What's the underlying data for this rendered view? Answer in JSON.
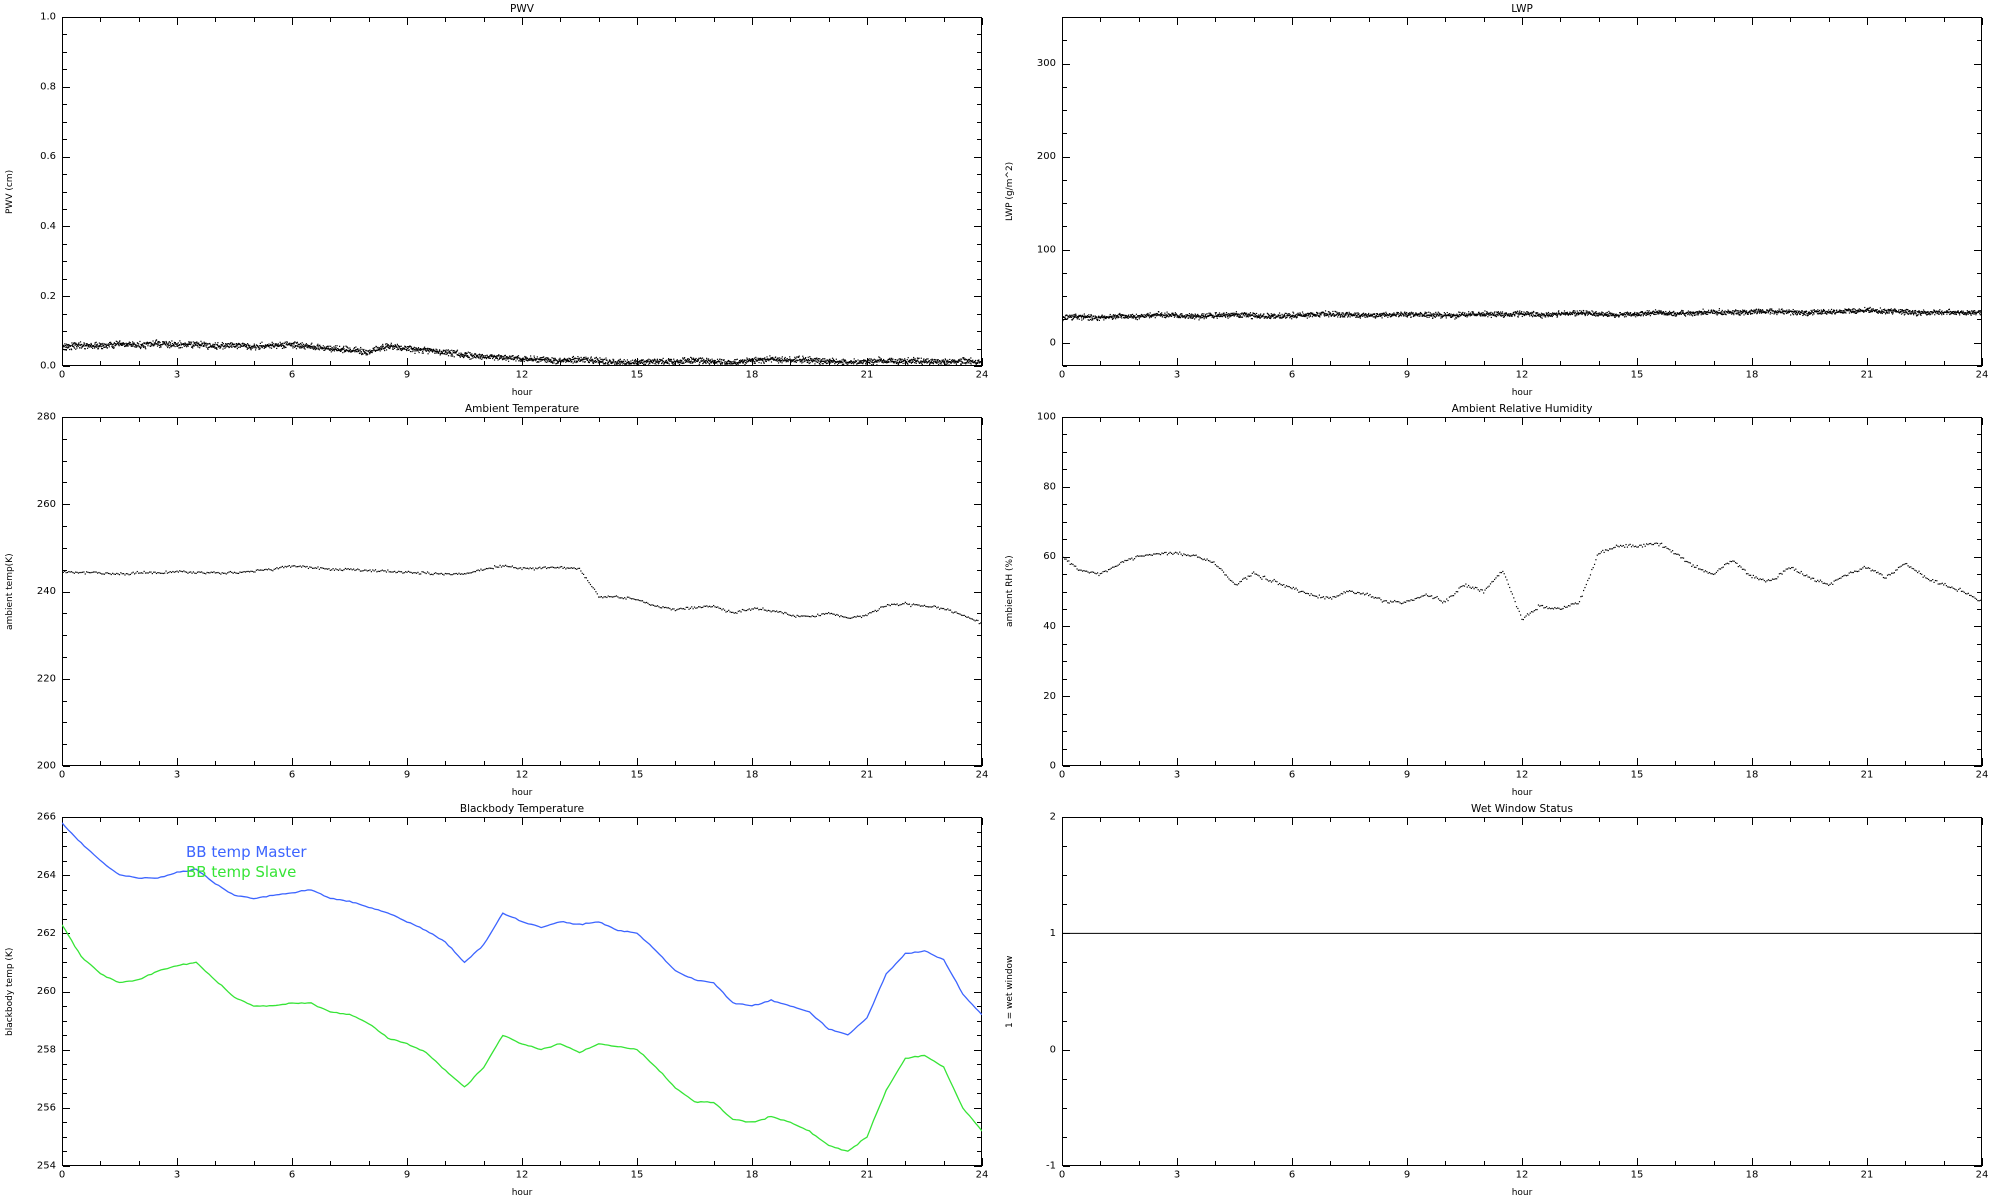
{
  "page": {
    "background": "#ffffff",
    "axis_color": "#000000"
  },
  "chart_data": [
    {
      "id": "pwv",
      "type": "line",
      "title": "PWV",
      "xlabel": "hour",
      "ylabel": "PWV (cm)",
      "xlim": [
        0,
        24
      ],
      "ylim": [
        0,
        1.0
      ],
      "xticks": [
        0,
        3,
        6,
        9,
        12,
        15,
        18,
        21,
        24
      ],
      "yticks": [
        0.0,
        0.2,
        0.4,
        0.6,
        0.8,
        1.0
      ],
      "xdecimals": 0,
      "ydecimals": 1,
      "xminor": 3,
      "yminor": 4,
      "grid": false,
      "series": [
        {
          "color": "#000000",
          "style": "dots",
          "noise": 0.009,
          "upsample": 60,
          "x0": 0,
          "dx": 0.5,
          "y": [
            0.055,
            0.06,
            0.057,
            0.062,
            0.059,
            0.064,
            0.06,
            0.062,
            0.057,
            0.06,
            0.056,
            0.058,
            0.061,
            0.055,
            0.05,
            0.045,
            0.04,
            0.057,
            0.05,
            0.046,
            0.038,
            0.032,
            0.027,
            0.025,
            0.021,
            0.017,
            0.015,
            0.019,
            0.015,
            0.011,
            0.01,
            0.012,
            0.013,
            0.016,
            0.012,
            0.01,
            0.015,
            0.02,
            0.016,
            0.018,
            0.013,
            0.01,
            0.012,
            0.015,
            0.012,
            0.015,
            0.011,
            0.014,
            0.012
          ]
        }
      ]
    },
    {
      "id": "lwp",
      "type": "line",
      "title": "LWP",
      "xlabel": "hour",
      "ylabel": "LWP (g/m^2)",
      "xlim": [
        0,
        24
      ],
      "ylim": [
        -25,
        350
      ],
      "xticks": [
        0,
        3,
        6,
        9,
        12,
        15,
        18,
        21,
        24
      ],
      "yticks": [
        0,
        100,
        200,
        300
      ],
      "xdecimals": 0,
      "ydecimals": 0,
      "xminor": 3,
      "yminor": 4,
      "grid": false,
      "series": [
        {
          "color": "#000000",
          "style": "dots",
          "noise": 2.8,
          "upsample": 60,
          "x0": 0,
          "dx": 0.5,
          "y": [
            27,
            28,
            27,
            29,
            28,
            30,
            29,
            28,
            29,
            30,
            29,
            28,
            29,
            30,
            31,
            30,
            29,
            30,
            31,
            30,
            29,
            30,
            31,
            30,
            31,
            30,
            31,
            32,
            31,
            30,
            31,
            32,
            31,
            32,
            33,
            32,
            33,
            34,
            33,
            32,
            33,
            34,
            35,
            34,
            33,
            32,
            33,
            32,
            33
          ]
        }
      ]
    },
    {
      "id": "ambient-temperature",
      "type": "line",
      "title": "Ambient Temperature",
      "xlabel": "hour",
      "ylabel": "ambient temp(K)",
      "xlim": [
        0,
        24
      ],
      "ylim": [
        200,
        280
      ],
      "xticks": [
        0,
        3,
        6,
        9,
        12,
        15,
        18,
        21,
        24
      ],
      "yticks": [
        200,
        220,
        240,
        260,
        280
      ],
      "xdecimals": 0,
      "ydecimals": 0,
      "xminor": 3,
      "yminor": 4,
      "grid": false,
      "series": [
        {
          "color": "#000000",
          "style": "dots",
          "noise": 0.3,
          "upsample": 14,
          "x0": 0,
          "dx": 0.5,
          "y": [
            244.5,
            244.3,
            244.2,
            244.0,
            244.2,
            244.3,
            244.5,
            244.3,
            244.2,
            244.4,
            244.6,
            245.1,
            245.9,
            245.5,
            245.1,
            245.0,
            244.8,
            244.6,
            244.5,
            244.2,
            243.9,
            244.1,
            245.1,
            245.9,
            245.3,
            245.4,
            245.5,
            245.3,
            238.9,
            238.6,
            238.2,
            236.6,
            235.9,
            236.3,
            236.6,
            235.1,
            236.1,
            235.6,
            234.6,
            234.1,
            235.1,
            233.9,
            234.6,
            236.9,
            237.1,
            236.6,
            236.1,
            234.6,
            232.6
          ]
        }
      ]
    },
    {
      "id": "ambient-relative-humidity",
      "type": "line",
      "title": "Ambient Relative Humidity",
      "xlabel": "hour",
      "ylabel": "ambient RH (%)",
      "xlim": [
        0,
        24
      ],
      "ylim": [
        0,
        100
      ],
      "xticks": [
        0,
        3,
        6,
        9,
        12,
        15,
        18,
        21,
        24
      ],
      "yticks": [
        0,
        20,
        40,
        60,
        80,
        100
      ],
      "xdecimals": 0,
      "ydecimals": 0,
      "xminor": 3,
      "yminor": 4,
      "grid": false,
      "series": [
        {
          "color": "#000000",
          "style": "dots",
          "noise": 0.5,
          "upsample": 14,
          "x0": 0,
          "dx": 0.5,
          "y": [
            60,
            56,
            55,
            58,
            60,
            61,
            61,
            60,
            58,
            52,
            55,
            53,
            51,
            49,
            48,
            50,
            49,
            47,
            47,
            49,
            47,
            52,
            50,
            56,
            42,
            46,
            45,
            47,
            61,
            63,
            63,
            64,
            61,
            57,
            55,
            59,
            54,
            53,
            57,
            54,
            52,
            55,
            57,
            54,
            58,
            54,
            52,
            50,
            47
          ]
        }
      ]
    },
    {
      "id": "blackbody-temperature",
      "type": "line",
      "title": "Blackbody Temperature",
      "xlabel": "hour",
      "ylabel": "blackbody temp (K)",
      "xlim": [
        0,
        24
      ],
      "ylim": [
        254,
        266
      ],
      "xticks": [
        0,
        3,
        6,
        9,
        12,
        15,
        18,
        21,
        24
      ],
      "yticks": [
        254,
        256,
        258,
        260,
        262,
        264,
        266
      ],
      "xdecimals": 0,
      "ydecimals": 0,
      "xminor": 3,
      "yminor": 4,
      "grid": false,
      "legend_position": "inside-top-left",
      "series": [
        {
          "name": "BB temp Master",
          "color": "#3c64ff",
          "style": "line",
          "width": 1.3,
          "noise": 0.02,
          "upsample": 6,
          "x0": 0,
          "dx": 0.5,
          "y": [
            265.8,
            265.1,
            264.5,
            264.0,
            263.9,
            263.9,
            264.1,
            264.2,
            263.7,
            263.3,
            263.2,
            263.3,
            263.4,
            263.5,
            263.2,
            263.1,
            262.9,
            262.7,
            262.4,
            262.1,
            261.7,
            261.0,
            261.6,
            262.7,
            262.4,
            262.2,
            262.4,
            262.3,
            262.4,
            262.1,
            262.0,
            261.4,
            260.7,
            260.4,
            260.3,
            259.6,
            259.5,
            259.7,
            259.5,
            259.3,
            258.7,
            258.5,
            259.1,
            260.6,
            261.3,
            261.4,
            261.1,
            259.9,
            259.2
          ]
        },
        {
          "name": "BB temp Slave",
          "color": "#36e436",
          "style": "line",
          "width": 1.3,
          "noise": 0.02,
          "upsample": 6,
          "x0": 0,
          "dx": 0.5,
          "y": [
            262.3,
            261.2,
            260.6,
            260.3,
            260.4,
            260.7,
            260.9,
            261.0,
            260.4,
            259.8,
            259.5,
            259.5,
            259.6,
            259.6,
            259.3,
            259.2,
            258.9,
            258.4,
            258.2,
            257.9,
            257.3,
            256.7,
            257.4,
            258.5,
            258.2,
            258.0,
            258.2,
            257.9,
            258.2,
            258.1,
            258.0,
            257.4,
            256.7,
            256.2,
            256.2,
            255.6,
            255.5,
            255.7,
            255.5,
            255.2,
            254.7,
            254.5,
            255.0,
            256.6,
            257.7,
            257.8,
            257.4,
            256.0,
            255.2
          ]
        }
      ]
    },
    {
      "id": "wet-window-status",
      "type": "line",
      "title": "Wet Window Status",
      "xlabel": "hour",
      "ylabel": "1 = wet window",
      "xlim": [
        0,
        24
      ],
      "ylim": [
        -1,
        2
      ],
      "xticks": [
        0,
        3,
        6,
        9,
        12,
        15,
        18,
        21,
        24
      ],
      "yticks": [
        -1,
        0,
        1,
        2
      ],
      "xdecimals": 0,
      "ydecimals": 0,
      "xminor": 3,
      "yminor": 4,
      "grid": false,
      "series": [
        {
          "color": "#000000",
          "style": "line",
          "width": 1,
          "noise": 0,
          "upsample": 1,
          "x0": 0,
          "dx": 24,
          "y": [
            1,
            1
          ]
        }
      ]
    }
  ]
}
